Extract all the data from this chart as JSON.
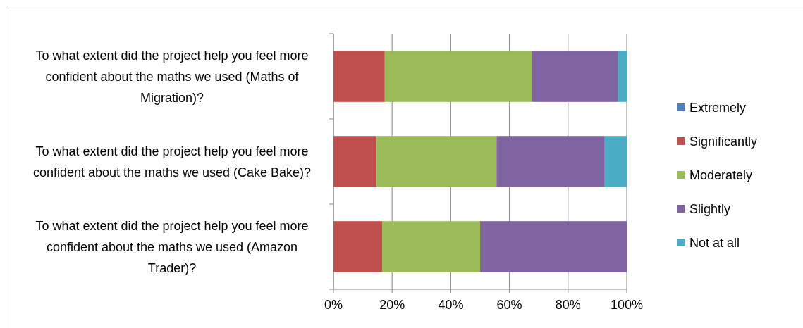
{
  "chart_data": {
    "type": "bar",
    "orientation": "horizontal",
    "stacked": true,
    "categories": [
      "To what extent did the project help you feel more confident about the maths we used (Maths of Migration)?",
      "To what extent did the project help you feel more confident about the maths we used (Cake Bake)?",
      "To what extent did the project help you feel more confident about the maths we used (Amazon Trader)?"
    ],
    "series": [
      {
        "name": "Extremely",
        "color": "#4f81bd",
        "values": [
          0,
          0,
          0
        ]
      },
      {
        "name": "Significantly",
        "color": "#c0504d",
        "values": [
          17.5,
          14.7,
          16.6
        ]
      },
      {
        "name": "Moderately",
        "color": "#9bbb59",
        "values": [
          50.2,
          40.9,
          33.4
        ]
      },
      {
        "name": "Slightly",
        "color": "#8064a2",
        "values": [
          29.3,
          36.9,
          50
        ]
      },
      {
        "name": "Not at all",
        "color": "#4bacc6",
        "values": [
          3,
          7.5,
          0
        ]
      }
    ],
    "xlim": [
      0,
      100
    ],
    "xticks": [
      {
        "value": 0,
        "label": "0%"
      },
      {
        "value": 20,
        "label": "20%"
      },
      {
        "value": 40,
        "label": "40%"
      },
      {
        "value": 60,
        "label": "60%"
      },
      {
        "value": 80,
        "label": "80%"
      },
      {
        "value": 100,
        "label": "100%"
      }
    ],
    "grid": "x",
    "legend": "right"
  }
}
